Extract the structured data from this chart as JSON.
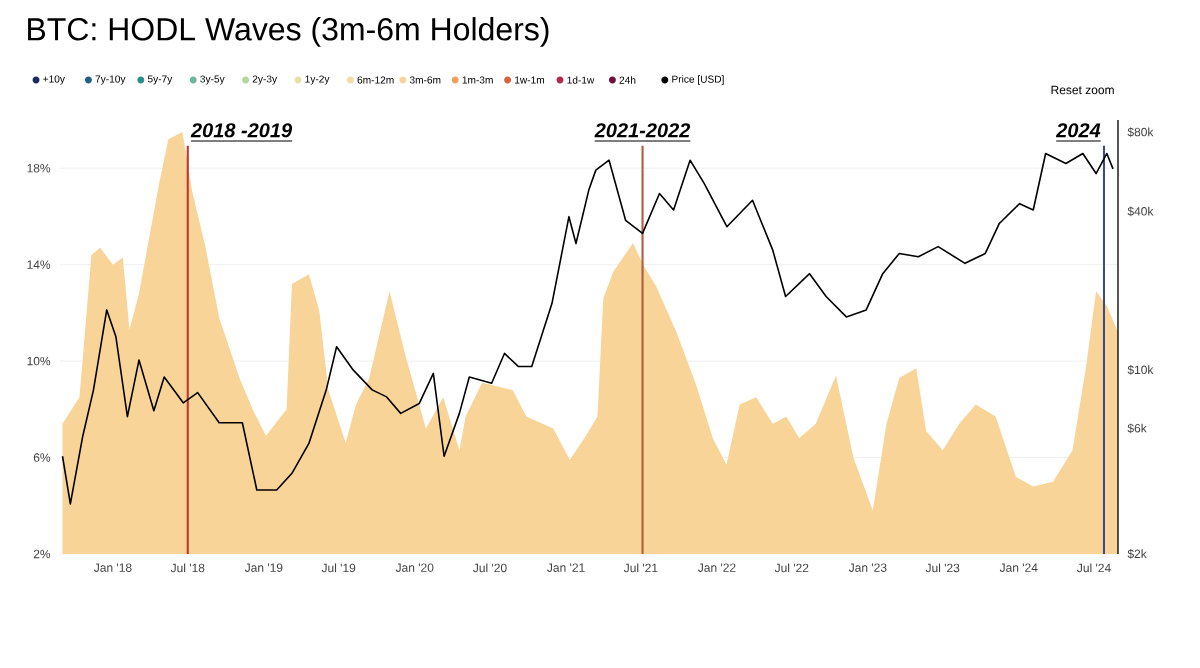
{
  "chart_data": {
    "type": "area",
    "title": "BTC: HODL Waves (3m-6m Holders)",
    "xlim": [
      "2017-08-26",
      "2024-08-28"
    ],
    "xticks": [
      {
        "value": "2018-01-01",
        "label": "Jan '18"
      },
      {
        "value": "2018-07-01",
        "label": "Jul '18"
      },
      {
        "value": "2019-01-01",
        "label": "Jan '19"
      },
      {
        "value": "2019-07-01",
        "label": "Jul '19"
      },
      {
        "value": "2020-01-01",
        "label": "Jan '20"
      },
      {
        "value": "2020-07-01",
        "label": "Jul '20"
      },
      {
        "value": "2021-01-01",
        "label": "Jan '21"
      },
      {
        "value": "2021-07-01",
        "label": "Jul '21"
      },
      {
        "value": "2022-01-01",
        "label": "Jan '22"
      },
      {
        "value": "2022-07-01",
        "label": "Jul '22"
      },
      {
        "value": "2023-01-01",
        "label": "Jan '23"
      },
      {
        "value": "2023-07-01",
        "label": "Jul '23"
      },
      {
        "value": "2024-01-01",
        "label": "Jan '24"
      },
      {
        "value": "2024-07-01",
        "label": "Jul '24"
      }
    ],
    "ylim": [
      2,
      20
    ],
    "yticks": [
      {
        "value": 2,
        "label": "2%"
      },
      {
        "value": 6,
        "label": "6%"
      },
      {
        "value": 10,
        "label": "10%"
      },
      {
        "value": 14,
        "label": "14%"
      },
      {
        "value": 18,
        "label": "18%"
      }
    ],
    "y2lim": [
      2000,
      89000
    ],
    "y2ticks": [
      {
        "value": 2000,
        "label": "$2k"
      },
      {
        "value": 6000,
        "label": "$6k"
      },
      {
        "value": 10000,
        "label": "$10k"
      },
      {
        "value": 40000,
        "label": "$40k"
      },
      {
        "value": 80000,
        "label": "$80k"
      }
    ],
    "log": "y2",
    "grid": "y",
    "legend": "top",
    "series": [
      {
        "name": "+10y",
        "color": "#1a2a5e"
      },
      {
        "name": "7y-10y",
        "color": "#1f5f8b"
      },
      {
        "name": "5y-7y",
        "color": "#2a8c8c"
      },
      {
        "name": "3y-5y",
        "color": "#6cb5a0"
      },
      {
        "name": "2y-3y",
        "color": "#b5d49a"
      },
      {
        "name": "1y-2y",
        "color": "#e6e3a0"
      },
      {
        "name": "6m-12m",
        "color": "#f0dca0"
      },
      {
        "name": "3m-6m",
        "color": "#f9d498",
        "x": [
          "2017-09-01",
          "2017-10-12",
          "2017-11-10",
          "2017-12-01",
          "2018-01-01",
          "2018-01-25",
          "2018-02-10",
          "2018-03-05",
          "2018-04-22",
          "2018-05-15",
          "2018-06-18",
          "2018-07-12",
          "2018-08-12",
          "2018-09-15",
          "2018-11-03",
          "2018-12-05",
          "2019-01-06",
          "2019-02-25",
          "2019-03-10",
          "2019-04-20",
          "2019-05-15",
          "2019-06-06",
          "2019-07-18",
          "2019-08-12",
          "2019-09-13",
          "2019-11-01",
          "2019-12-10",
          "2020-01-28",
          "2020-03-10",
          "2020-04-18",
          "2020-05-03",
          "2020-06-12",
          "2020-08-25",
          "2020-09-27",
          "2020-12-01",
          "2021-01-10",
          "2021-02-18",
          "2021-03-18",
          "2021-04-01",
          "2021-04-25",
          "2021-06-12",
          "2021-07-06",
          "2021-08-07",
          "2021-09-25",
          "2021-11-12",
          "2021-12-22",
          "2022-01-24",
          "2022-02-25",
          "2022-04-06",
          "2022-05-16",
          "2022-06-18",
          "2022-07-19",
          "2022-08-28",
          "2022-10-16",
          "2022-11-27",
          "2023-01-13",
          "2023-02-15",
          "2023-03-18",
          "2023-04-28",
          "2023-05-22",
          "2023-07-01",
          "2023-08-10",
          "2023-09-19",
          "2023-11-06",
          "2023-12-25",
          "2024-02-05",
          "2024-03-24",
          "2024-05-10",
          "2024-06-12",
          "2024-07-06",
          "2024-08-01",
          "2024-08-28"
        ],
        "values": [
          7.4,
          8.5,
          14.4,
          14.7,
          14.0,
          14.3,
          11.3,
          12.8,
          17.3,
          19.2,
          19.5,
          17.0,
          14.8,
          11.8,
          9.3,
          8.0,
          6.9,
          8.0,
          13.2,
          13.6,
          12.1,
          8.8,
          6.6,
          8.2,
          9.3,
          12.9,
          10.2,
          7.2,
          8.5,
          6.3,
          7.7,
          9.1,
          8.8,
          7.7,
          7.2,
          5.9,
          6.9,
          7.7,
          12.6,
          13.7,
          14.9,
          14.0,
          13.1,
          11.2,
          9.0,
          6.8,
          5.7,
          8.2,
          8.5,
          7.4,
          7.7,
          6.8,
          7.4,
          9.4,
          6.0,
          3.8,
          7.4,
          9.3,
          9.7,
          7.1,
          6.3,
          7.4,
          8.2,
          7.7,
          5.2,
          4.8,
          5.0,
          6.3,
          9.8,
          12.9,
          12.3,
          11.2
        ]
      },
      {
        "name": "1m-3m",
        "color": "#f0a05a"
      },
      {
        "name": "1w-1m",
        "color": "#d9603b"
      },
      {
        "name": "1d-1w",
        "color": "#b02a4a"
      },
      {
        "name": "24h",
        "color": "#6b1040"
      },
      {
        "name": "Price [USD]",
        "color": "#000000",
        "type": "line",
        "axis": "y2",
        "x": [
          "2017-09-01",
          "2017-09-20",
          "2017-10-20",
          "2017-11-15",
          "2017-12-17",
          "2018-01-08",
          "2018-02-05",
          "2018-03-05",
          "2018-04-10",
          "2018-05-05",
          "2018-06-20",
          "2018-07-25",
          "2018-09-15",
          "2018-11-10",
          "2018-12-15",
          "2019-02-01",
          "2019-03-10",
          "2019-04-20",
          "2019-06-01",
          "2019-06-26",
          "2019-08-05",
          "2019-09-20",
          "2019-10-25",
          "2019-11-28",
          "2020-01-12",
          "2020-02-15",
          "2020-03-12",
          "2020-04-18",
          "2020-05-12",
          "2020-07-05",
          "2020-08-05",
          "2020-09-08",
          "2020-10-10",
          "2020-11-28",
          "2021-01-08",
          "2021-01-25",
          "2021-02-25",
          "2021-03-14",
          "2021-04-15",
          "2021-05-25",
          "2021-07-05",
          "2021-08-15",
          "2021-09-18",
          "2021-10-28",
          "2021-12-01",
          "2022-01-25",
          "2022-03-28",
          "2022-05-16",
          "2022-06-16",
          "2022-08-13",
          "2022-09-22",
          "2022-11-10",
          "2022-12-28",
          "2023-02-06",
          "2023-03-18",
          "2023-05-03",
          "2023-06-20",
          "2023-08-24",
          "2023-10-12",
          "2023-11-15",
          "2024-01-03",
          "2024-02-05",
          "2024-03-06",
          "2024-04-24",
          "2024-06-04",
          "2024-07-06",
          "2024-08-01",
          "2024-08-16"
        ],
        "values": [
          4700,
          3100,
          5600,
          8400,
          16900,
          13400,
          6650,
          10900,
          7000,
          9400,
          7500,
          8200,
          6300,
          6300,
          3500,
          3500,
          4050,
          5260,
          8400,
          12250,
          10000,
          8400,
          7900,
          6840,
          7460,
          9700,
          4700,
          6840,
          9400,
          8900,
          11550,
          10300,
          10300,
          17900,
          38200,
          30200,
          48200,
          57400,
          62600,
          37000,
          33000,
          46800,
          40500,
          62600,
          51100,
          35000,
          44100,
          28500,
          19000,
          23200,
          19000,
          15900,
          16900,
          23200,
          27700,
          26900,
          29400,
          25400,
          27700,
          36000,
          42800,
          40500,
          66400,
          60800,
          66400,
          55700,
          66400,
          58000
        ]
      }
    ],
    "ref_lines": [
      {
        "axis": "x",
        "value": "2018-07-01",
        "color": "#c0392b",
        "label": "2018 -2019"
      },
      {
        "axis": "x",
        "value": "2021-07-05",
        "color": "#b0603f",
        "label": "2021-2022"
      },
      {
        "axis": "x",
        "value": "2024-07-25",
        "color": "#3b4a8a",
        "label": "2024"
      }
    ],
    "annotations": [
      "Reset zoom"
    ]
  }
}
